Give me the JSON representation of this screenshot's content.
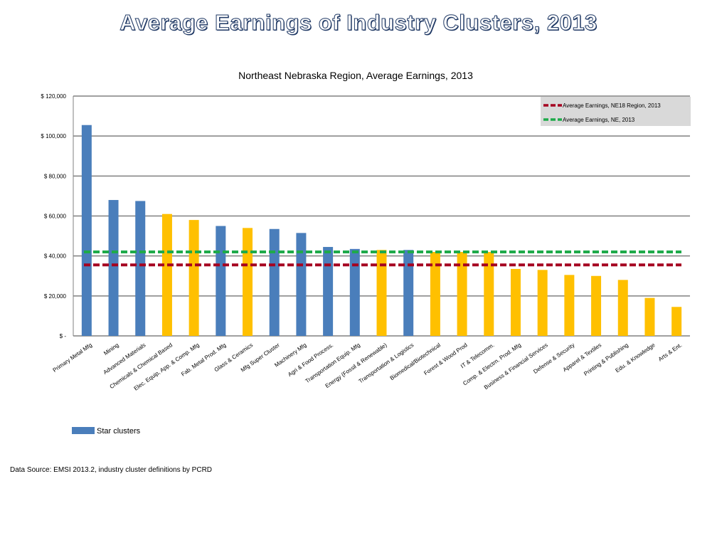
{
  "slide_title": "Average Earnings of Industry Clusters, 2013",
  "source_note": "Data Source: EMSI 2013.2, industry cluster definitions by PCRD",
  "colors": {
    "star": "#4a7ebb",
    "other": "#ffc000",
    "ne18_line": "#a50021",
    "ne_line": "#1faa4a",
    "grid": "#808080",
    "legend_bg": "#d9d9d9"
  },
  "chart_data": {
    "type": "bar",
    "title": "Northeast Nebraska Region, Average Earnings, 2013",
    "ylim": [
      0,
      120000
    ],
    "yticks": [
      {
        "value": 0,
        "label": "$ -"
      },
      {
        "value": 20000,
        "label": "$ 20,000"
      },
      {
        "value": 40000,
        "label": "$ 40,000"
      },
      {
        "value": 60000,
        "label": "$ 60,000"
      },
      {
        "value": 80000,
        "label": "$ 80,000"
      },
      {
        "value": 100000,
        "label": "$ 100,000"
      },
      {
        "value": 120000,
        "label": "$ 120,000"
      }
    ],
    "grid": true,
    "categories": [
      "Primary Metal Mfg",
      "Mining",
      "Advanced Materials",
      "Chemicals & Chemical Based",
      "Elec. Equip, App. & Comp. Mfg",
      "Fab. Metal Prod. Mfg",
      "Glass & Ceramics",
      "Mfg Super Cluster",
      "Machinery Mfg",
      "Agri & Food Process.",
      "Transportation Equip. Mfg",
      "Energy (Fossil & Renewable)",
      "Transportation & Logistics",
      "Biomedical/Biotechnical",
      "Forest & Wood Prod",
      "IT & Telecomm.",
      "Comp. & Electrn. Prod. Mfg",
      "Business & Financial Services",
      "Defense & Security",
      "Apparel & Textiles",
      "Printing & Publishing",
      "Edu. & Knowledge",
      "Arts & Ent."
    ],
    "values": [
      105500,
      68000,
      67500,
      61000,
      58000,
      55000,
      54000,
      53500,
      51500,
      44500,
      43500,
      43000,
      43000,
      42000,
      42000,
      42000,
      33500,
      33000,
      30500,
      30000,
      28000,
      19000,
      14500
    ],
    "star": [
      true,
      true,
      true,
      false,
      false,
      true,
      false,
      true,
      true,
      true,
      true,
      false,
      true,
      false,
      false,
      false,
      false,
      false,
      false,
      false,
      false,
      false,
      false
    ],
    "reference_lines": [
      {
        "name": "Average Earnings, NE18 Region, 2013",
        "value": 35500,
        "color": "#a50021"
      },
      {
        "name": "Average Earnings, NE, 2013",
        "value": 42000,
        "color": "#1faa4a"
      }
    ],
    "legend": {
      "position": "top-right"
    },
    "bottom_legend": {
      "label": "Star clusters",
      "color": "#4a7ebb"
    }
  }
}
